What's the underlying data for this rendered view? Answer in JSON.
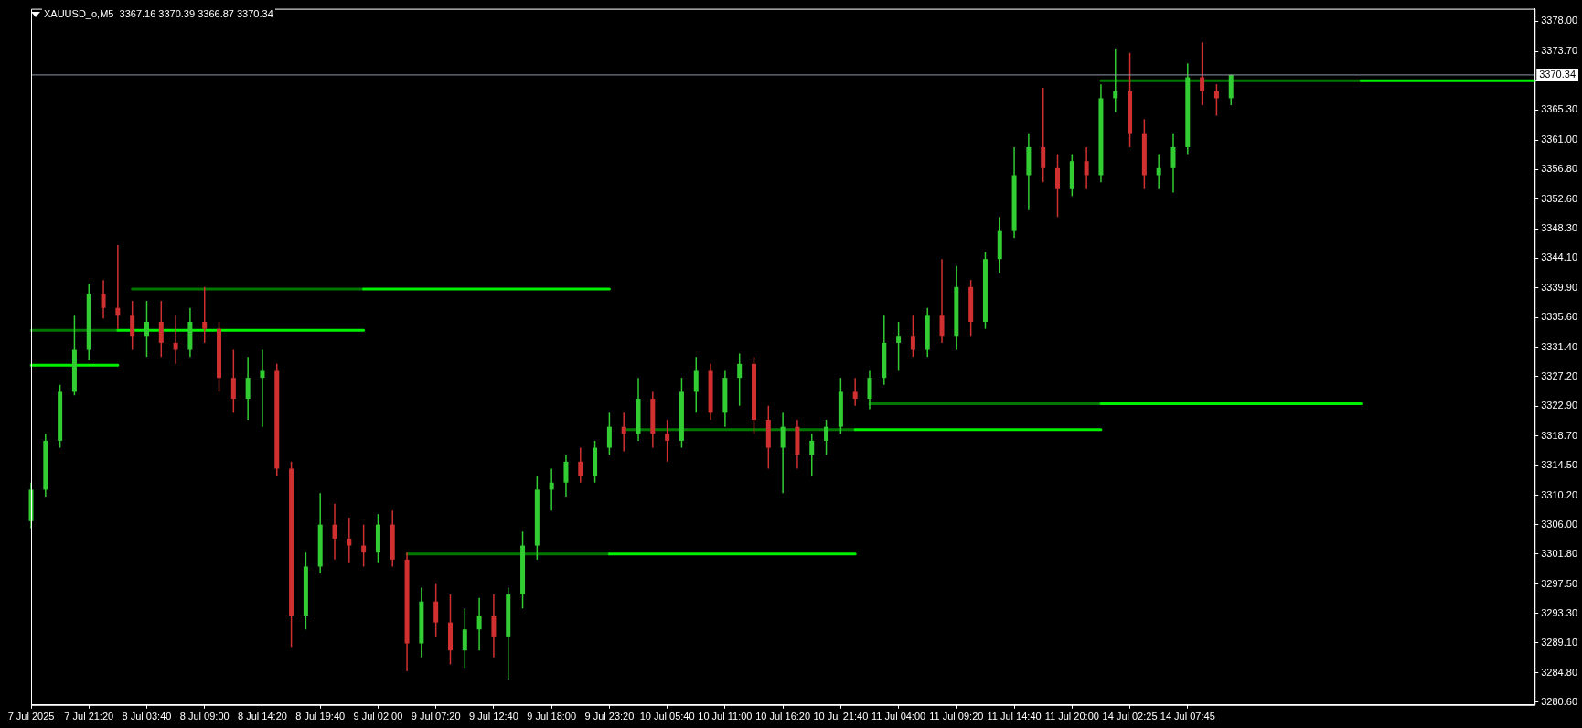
{
  "chart_data": {
    "type": "candlestick",
    "title": "XAUUSD_o,M5  3367.16 3370.39 3366.87 3370.34",
    "categories": [
      "7 Jul 2025",
      null,
      null,
      null,
      "7 Jul 21:20",
      null,
      null,
      null,
      "8 Jul 03:40",
      null,
      null,
      null,
      "8 Jul 09:00",
      null,
      null,
      null,
      "8 Jul 14:20",
      null,
      null,
      null,
      "8 Jul 19:40",
      null,
      null,
      null,
      "9 Jul 02:00",
      null,
      null,
      null,
      "9 Jul 07:20",
      null,
      null,
      null,
      "9 Jul 12:40",
      null,
      null,
      null,
      "9 Jul 18:00",
      null,
      null,
      null,
      "9 Jul 23:20",
      null,
      null,
      null,
      "10 Jul 05:40",
      null,
      null,
      null,
      "10 Jul 11:00",
      null,
      null,
      null,
      "10 Jul 16:20",
      null,
      null,
      null,
      "10 Jul 21:40",
      null,
      null,
      null,
      "11 Jul 04:00",
      null,
      null,
      null,
      "11 Jul 09:20",
      null,
      null,
      null,
      "11 Jul 14:40",
      null,
      null,
      null,
      "11 Jul 20:00",
      null,
      null,
      null,
      "14 Jul 02:25",
      null,
      null,
      null,
      "14 Jul 07:45",
      null,
      null,
      null,
      null,
      null,
      null,
      null,
      null,
      null,
      null,
      null,
      null,
      null,
      null,
      null,
      null,
      null,
      null,
      null,
      null,
      null,
      null,
      null,
      null
    ],
    "ylim": [
      3280.2,
      3379.8
    ],
    "yticks": [
      {
        "value": 3280.6,
        "label": "3280.60"
      },
      {
        "value": 3284.8,
        "label": "3284.80"
      },
      {
        "value": 3289.1,
        "label": "3289.10"
      },
      {
        "value": 3293.3,
        "label": "3293.30"
      },
      {
        "value": 3297.5,
        "label": "3297.50"
      },
      {
        "value": 3301.8,
        "label": "3301.80"
      },
      {
        "value": 3306,
        "label": "3306.00"
      },
      {
        "value": 3310.2,
        "label": "3310.20"
      },
      {
        "value": 3314.5,
        "label": "3314.50"
      },
      {
        "value": 3318.7,
        "label": "3318.70"
      },
      {
        "value": 3322.9,
        "label": "3322.90"
      },
      {
        "value": 3327.2,
        "label": "3327.20"
      },
      {
        "value": 3331.4,
        "label": "3331.40"
      },
      {
        "value": 3335.6,
        "label": "3335.60"
      },
      {
        "value": 3339.9,
        "label": "3339.90"
      },
      {
        "value": 3344.1,
        "label": "3344.10"
      },
      {
        "value": 3348.3,
        "label": "3348.30"
      },
      {
        "value": 3352.6,
        "label": "3352.60"
      },
      {
        "value": 3356.8,
        "label": "3356.80"
      },
      {
        "value": 3361,
        "label": "3361.00"
      },
      {
        "value": 3365.3,
        "label": "3365.30"
      },
      {
        "value": 3369.5,
        "label": null
      },
      {
        "value": 3373.7,
        "label": "3373.70"
      },
      {
        "value": 3378,
        "label": "3378.00"
      }
    ],
    "ref_lines": [
      {
        "axis": "y",
        "value": 3370.34,
        "label": "3370.34",
        "color": "#8c98a8"
      }
    ],
    "series": [
      {
        "ohlc": [
          [
            3306.5,
            3312,
            3305.5,
            3311
          ],
          [
            3311,
            3319,
            3310,
            3318
          ],
          [
            3318,
            3326,
            3317,
            3325
          ],
          [
            3325,
            3336,
            3324.5,
            3331
          ],
          [
            3331,
            3340.5,
            3329.5,
            3339
          ],
          [
            3339,
            3341,
            3335.5,
            3337
          ],
          [
            3337,
            3346,
            3334,
            3336
          ],
          [
            3336,
            3338,
            3331,
            3333
          ],
          [
            3333,
            3338,
            3330,
            3335
          ],
          [
            3335,
            3338,
            3330,
            3332
          ],
          [
            3332,
            3336,
            3329,
            3331
          ],
          [
            3331,
            3337,
            3330,
            3335
          ],
          [
            3335,
            3340,
            3332,
            3334
          ],
          [
            3334,
            3335,
            3325,
            3327
          ],
          [
            3327,
            3331,
            3322,
            3324
          ],
          [
            3324,
            3330,
            3321,
            3327
          ],
          [
            3327,
            3331,
            3320,
            3328
          ],
          [
            3328,
            3329,
            3313,
            3314
          ],
          [
            3314,
            3315,
            3288.5,
            3293
          ],
          [
            3293,
            3302,
            3291,
            3300
          ],
          [
            3300,
            3310.5,
            3299,
            3306
          ],
          [
            3306,
            3309,
            3301,
            3304
          ],
          [
            3304,
            3307,
            3300.5,
            3303
          ],
          [
            3303,
            3306,
            3300,
            3302
          ],
          [
            3302,
            3307.5,
            3300.5,
            3306
          ],
          [
            3306,
            3308,
            3300,
            3301
          ],
          [
            3301,
            3302,
            3285,
            3289
          ],
          [
            3289,
            3297,
            3287,
            3295
          ],
          [
            3295,
            3297.5,
            3290,
            3292
          ],
          [
            3292,
            3296,
            3286,
            3288
          ],
          [
            3288,
            3294,
            3285.5,
            3291
          ],
          [
            3291,
            3295.5,
            3288,
            3293
          ],
          [
            3293,
            3296,
            3287,
            3290
          ],
          [
            3290,
            3297,
            3283.8,
            3296
          ],
          [
            3296,
            3305,
            3294,
            3303
          ],
          [
            3303,
            3313,
            3301,
            3311
          ],
          [
            3311,
            3314,
            3308,
            3312
          ],
          [
            3312,
            3316,
            3310,
            3315
          ],
          [
            3315,
            3317,
            3312,
            3313
          ],
          [
            3313,
            3318,
            3312,
            3317
          ],
          [
            3317,
            3322,
            3316,
            3320
          ],
          [
            3320,
            3322,
            3316.5,
            3319
          ],
          [
            3319,
            3327,
            3318,
            3324
          ],
          [
            3324,
            3325,
            3317,
            3319
          ],
          [
            3319,
            3321,
            3315,
            3318
          ],
          [
            3318,
            3327,
            3317,
            3325
          ],
          [
            3325,
            3330,
            3322,
            3328
          ],
          [
            3328,
            3329,
            3321,
            3322
          ],
          [
            3322,
            3328,
            3320,
            3327
          ],
          [
            3327,
            3330.5,
            3323,
            3329
          ],
          [
            3329,
            3330,
            3319,
            3321
          ],
          [
            3321,
            3323,
            3314,
            3317
          ],
          [
            3317,
            3322,
            3310.5,
            3320
          ],
          [
            3320,
            3321,
            3314,
            3316
          ],
          [
            3316,
            3319,
            3313,
            3318
          ],
          [
            3318,
            3321,
            3316,
            3320
          ],
          [
            3320,
            3327,
            3319,
            3325
          ],
          [
            3325,
            3327,
            3323,
            3324
          ],
          [
            3324,
            3328,
            3322.5,
            3327
          ],
          [
            3327,
            3336,
            3326,
            3332
          ],
          [
            3332,
            3335,
            3328,
            3333
          ],
          [
            3333,
            3336,
            3330,
            3331
          ],
          [
            3331,
            3337,
            3330,
            3336
          ],
          [
            3336,
            3344,
            3332,
            3333
          ],
          [
            3333,
            3343,
            3331,
            3340
          ],
          [
            3340,
            3341,
            3333,
            3335
          ],
          [
            3335,
            3345,
            3334,
            3344
          ],
          [
            3344,
            3350,
            3342,
            3348
          ],
          [
            3348,
            3360,
            3347,
            3356
          ],
          [
            3356,
            3362,
            3351,
            3360
          ],
          [
            3360,
            3368.5,
            3355,
            3357
          ],
          [
            3357,
            3359,
            3350,
            3354
          ],
          [
            3354,
            3359,
            3353,
            3358
          ],
          [
            3358,
            3360,
            3354,
            3356
          ],
          [
            3356,
            3369,
            3355,
            3367
          ],
          [
            3367,
            3374,
            3365,
            3368
          ],
          [
            3368,
            3373.5,
            3360,
            3362
          ],
          [
            3362,
            3364,
            3354,
            3356
          ],
          [
            3356,
            3359,
            3354,
            3357
          ],
          [
            3357,
            3362,
            3353.5,
            3360
          ],
          [
            3360,
            3372,
            3359,
            3370
          ],
          [
            3370,
            3375,
            3366,
            3368
          ],
          [
            3368,
            3369,
            3364.5,
            3367
          ],
          [
            3367,
            3370.39,
            3366,
            3370.34
          ],
          null,
          null,
          null,
          null,
          null,
          null,
          null,
          null,
          null,
          null,
          null,
          null,
          null,
          null,
          null,
          null,
          null,
          null,
          null,
          null,
          null
        ],
        "colors": [
          "#32cd32",
          "#32cd32",
          "#32cd32",
          "#32cd32",
          "#32cd32",
          "#d03030",
          "#d03030",
          "#d03030",
          "#32cd32",
          "#d03030",
          "#d03030",
          "#32cd32",
          "#d03030",
          "#d03030",
          "#d03030",
          "#32cd32",
          "#32cd32",
          "#d03030",
          "#d03030",
          "#32cd32",
          "#32cd32",
          "#d03030",
          "#d03030",
          "#d03030",
          "#32cd32",
          "#d03030",
          "#d03030",
          "#32cd32",
          "#d03030",
          "#d03030",
          "#32cd32",
          "#32cd32",
          "#d03030",
          "#32cd32",
          "#32cd32",
          "#32cd32",
          "#32cd32",
          "#32cd32",
          "#d03030",
          "#32cd32",
          "#32cd32",
          "#d03030",
          "#32cd32",
          "#d03030",
          "#d03030",
          "#32cd32",
          "#32cd32",
          "#d03030",
          "#32cd32",
          "#32cd32",
          "#d03030",
          "#d03030",
          "#32cd32",
          "#d03030",
          "#32cd32",
          "#32cd32",
          "#32cd32",
          "#d03030",
          "#32cd32",
          "#32cd32",
          "#32cd32",
          "#d03030",
          "#32cd32",
          "#d03030",
          "#32cd32",
          "#d03030",
          "#32cd32",
          "#32cd32",
          "#32cd32",
          "#32cd32",
          "#d03030",
          "#d03030",
          "#32cd32",
          "#d03030",
          "#32cd32",
          "#32cd32",
          "#d03030",
          "#d03030",
          "#32cd32",
          "#32cd32",
          "#32cd32",
          "#d03030",
          "#d03030",
          "#32cd32",
          null,
          null,
          null,
          null,
          null,
          null,
          null,
          null,
          null,
          null,
          null,
          null,
          null,
          null,
          null,
          null,
          null,
          null,
          null,
          null,
          null
        ]
      },
      {
        "type": "line",
        "color": "#00f000",
        "values": [
          3328.8,
          3328.8,
          3328.8,
          3328.8,
          3328.8,
          3328.8,
          3328.8,
          null,
          null,
          null,
          null,
          null,
          null,
          null,
          null,
          null,
          null,
          null,
          null,
          null,
          null,
          null,
          null,
          3339.7,
          3339.7,
          3339.7,
          3339.7,
          3339.7,
          3339.7,
          3339.7,
          3339.7,
          3339.7,
          3339.7,
          3339.7,
          3339.7,
          3339.7,
          3339.7,
          3339.7,
          3339.7,
          3339.7,
          3339.7,
          null,
          null,
          null,
          null,
          null,
          null,
          null,
          null,
          null,
          null,
          null,
          null,
          null,
          null,
          null,
          null,
          3319.6,
          3319.6,
          3319.6,
          3319.6,
          3319.6,
          3319.6,
          3319.6,
          3319.6,
          3319.6,
          3319.6,
          3319.6,
          3319.6,
          3319.6,
          3319.6,
          3319.6,
          3319.6,
          3319.6,
          3319.6,
          null,
          null,
          null,
          null,
          null,
          null,
          null,
          null,
          null,
          null,
          null,
          null,
          null,
          null,
          null,
          null,
          null,
          3369.5,
          3369.5,
          3369.5,
          3369.5,
          3369.5,
          3369.5,
          3369.5,
          3369.5,
          3369.5,
          3369.5,
          3369.5,
          3369.5,
          3369.5
        ]
      },
      {
        "type": "line",
        "color": "#00f000",
        "values": [
          null,
          null,
          null,
          null,
          null,
          null,
          3333.8,
          3333.8,
          3333.8,
          3333.8,
          3333.8,
          3333.8,
          3333.8,
          3333.8,
          3333.8,
          3333.8,
          3333.8,
          3333.8,
          3333.8,
          3333.8,
          3333.8,
          3333.8,
          3333.8,
          3333.8,
          null,
          null,
          null,
          null,
          null,
          null,
          null,
          null,
          null,
          null,
          null,
          null,
          null,
          null,
          null,
          null,
          3301.8,
          3301.8,
          3301.8,
          3301.8,
          3301.8,
          3301.8,
          3301.8,
          3301.8,
          3301.8,
          3301.8,
          3301.8,
          3301.8,
          3301.8,
          3301.8,
          3301.8,
          3301.8,
          3301.8,
          3301.8,
          null,
          null,
          null,
          null,
          null,
          null,
          null,
          null,
          null,
          null,
          null,
          null,
          null,
          null,
          null,
          null,
          3323.3,
          3323.3,
          3323.3,
          3323.3,
          3323.3,
          3323.3,
          3323.3,
          3323.3,
          3323.3,
          3323.3,
          3323.3,
          3323.3,
          3323.3,
          3323.3,
          3323.3,
          3323.3,
          3323.3,
          3323.3,
          3323.3,
          null,
          null,
          null,
          null,
          null,
          null,
          null,
          null,
          null,
          null,
          null,
          null
        ]
      },
      {
        "type": "line",
        "color": "#007800",
        "values": [
          3333.8,
          3333.8,
          3333.8,
          3333.8,
          3333.8,
          3333.8,
          3333.8,
          null,
          null,
          null,
          null,
          null,
          null,
          null,
          null,
          null,
          null,
          null,
          null,
          null,
          null,
          null,
          null,
          null,
          null,
          null,
          3301.8,
          3301.8,
          3301.8,
          3301.8,
          3301.8,
          3301.8,
          3301.8,
          3301.8,
          3301.8,
          3301.8,
          3301.8,
          3301.8,
          3301.8,
          3301.8,
          3301.8,
          null,
          null,
          null,
          null,
          null,
          null,
          null,
          null,
          null,
          null,
          null,
          null,
          null,
          null,
          null,
          null,
          null,
          3323.3,
          3323.3,
          3323.3,
          3323.3,
          3323.3,
          3323.3,
          3323.3,
          3323.3,
          3323.3,
          3323.3,
          3323.3,
          3323.3,
          3323.3,
          3323.3,
          3323.3,
          3323.3,
          3323.3,
          null,
          null,
          null,
          null,
          null,
          null,
          null,
          null,
          null,
          null,
          null,
          null,
          null,
          null,
          null,
          null,
          null,
          null,
          null,
          null,
          null,
          null,
          null,
          null,
          null,
          null,
          null,
          null,
          null,
          null
        ]
      },
      {
        "type": "line",
        "color": "#007800",
        "values": [
          null,
          null,
          null,
          null,
          null,
          null,
          null,
          3339.7,
          3339.7,
          3339.7,
          3339.7,
          3339.7,
          3339.7,
          3339.7,
          3339.7,
          3339.7,
          3339.7,
          3339.7,
          3339.7,
          3339.7,
          3339.7,
          3339.7,
          3339.7,
          3339.7,
          null,
          null,
          null,
          null,
          null,
          null,
          null,
          null,
          null,
          null,
          null,
          null,
          null,
          null,
          null,
          null,
          null,
          3319.6,
          3319.6,
          3319.6,
          3319.6,
          3319.6,
          3319.6,
          3319.6,
          3319.6,
          3319.6,
          3319.6,
          3319.6,
          3319.6,
          3319.6,
          3319.6,
          3319.6,
          3319.6,
          3319.6,
          null,
          null,
          null,
          null,
          null,
          null,
          null,
          null,
          null,
          null,
          null,
          null,
          null,
          null,
          null,
          null,
          3369.5,
          3369.5,
          3369.5,
          3369.5,
          3369.5,
          3369.5,
          3369.5,
          3369.5,
          3369.5,
          3369.5,
          3369.5,
          3369.5,
          3369.5,
          3369.5,
          3369.5,
          3369.5,
          3369.5,
          3369.5,
          3369.5,
          null,
          null,
          null,
          null,
          null,
          null,
          null,
          null,
          null,
          null,
          null,
          null
        ]
      }
    ]
  }
}
